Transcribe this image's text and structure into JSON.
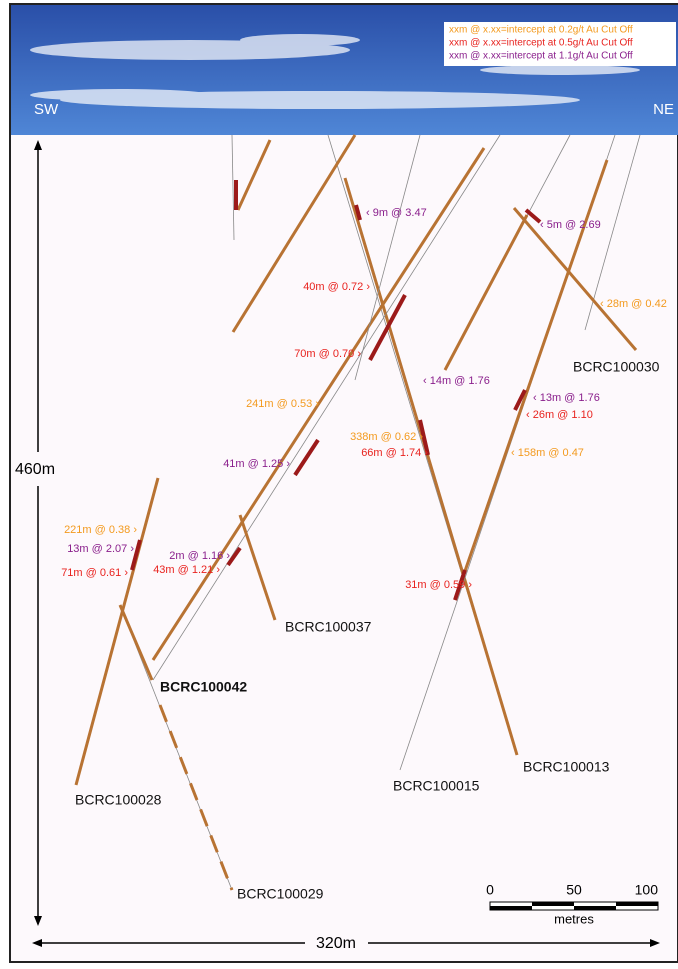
{
  "legend": [
    {
      "text": "xxm @ x.xx=intercept at 0.2g/t Au Cut Off",
      "color": "#f39a1e"
    },
    {
      "text": "xxm @ x.xx=intercept at 0.5g/t Au Cut Off",
      "color": "#e8231f"
    },
    {
      "text": "xxm @ x.xx=intercept at 1.1g/t Au Cut Off",
      "color": "#8a1f8c"
    }
  ],
  "directions": [
    "SW",
    "NE"
  ],
  "dimensions": {
    "height": "460m",
    "width": "320m"
  },
  "scale_bar": {
    "ticks": [
      "0",
      "50",
      "100"
    ],
    "unit": "metres"
  },
  "drill_holes": [
    "BCRC100030",
    "BCRC100037",
    "BCRC100042",
    "BCRC100028",
    "BCRC100029",
    "BCRC100015",
    "BCRC100013"
  ],
  "intercepts": [
    {
      "label": "‹ 9m @ 3.47",
      "color": "#8a1f8c"
    },
    {
      "label": "40m @ 0.72 ›",
      "color": "#e8231f"
    },
    {
      "label": "70m @ 0.70 ›",
      "color": "#e8231f"
    },
    {
      "label": "241m @ 0.53 ›",
      "color": "#f39a1e"
    },
    {
      "label": "41m @ 1.25 ›",
      "color": "#8a1f8c"
    },
    {
      "label": "‹ 5m @ 2.69",
      "color": "#8a1f8c"
    },
    {
      "label": "‹ 28m @ 0.42",
      "color": "#f39a1e"
    },
    {
      "label": "‹ 14m @ 1.76",
      "color": "#8a1f8c"
    },
    {
      "label": "‹ 13m @ 1.76",
      "color": "#8a1f8c"
    },
    {
      "label": "‹ 26m @ 1.10",
      "color": "#e8231f"
    },
    {
      "label": "338m @ 0.62 ›",
      "color": "#f39a1e"
    },
    {
      "label": "66m @ 1.74 ›",
      "color": "#e8231f"
    },
    {
      "label": "‹ 158m @ 0.47",
      "color": "#f39a1e"
    },
    {
      "label": "221m @ 0.38 ›",
      "color": "#f39a1e"
    },
    {
      "label": "13m @ 2.07 ›",
      "color": "#8a1f8c"
    },
    {
      "label": "71m @ 0.61 ›",
      "color": "#e8231f"
    },
    {
      "label": "2m @ 1.16 ›",
      "color": "#8a1f8c"
    },
    {
      "label": "43m @ 1.21 ›",
      "color": "#e8231f"
    },
    {
      "label": "31m @ 0.59 ›",
      "color": "#e8231f"
    }
  ]
}
